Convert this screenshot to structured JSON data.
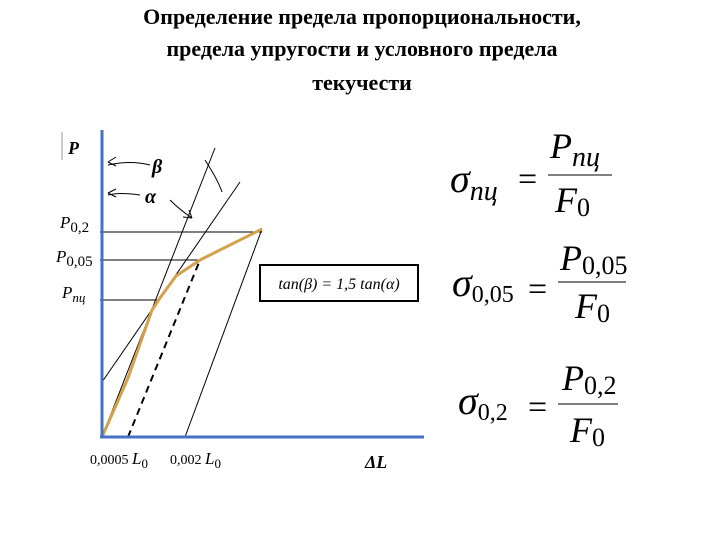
{
  "title": [
    "Определение предела пропорциональности,",
    "предела упругости и условного предела",
    "текучести"
  ],
  "axis": {
    "y": "P",
    "x": "ΔL"
  },
  "angles": [
    "β",
    "α"
  ],
  "y_labels": [
    {
      "base": "P",
      "sub": "0,2"
    },
    {
      "base": "P",
      "sub": "0,05"
    },
    {
      "base": "P",
      "sub": "пц"
    }
  ],
  "x_labels": [
    {
      "value": "0,0005",
      "base": "L",
      "sub": "0"
    },
    {
      "value": "0,002",
      "base": "L",
      "sub": "0"
    }
  ],
  "relation": "tan(β) = 1,5 tan(α)",
  "formulas": [
    {
      "sigma": "σ",
      "sub": "пц",
      "eq": "=",
      "num": {
        "base": "P",
        "sub": "пц"
      },
      "den": {
        "base": "F",
        "sub": "0"
      }
    },
    {
      "sigma": "σ",
      "sub": "0,05",
      "eq": "=",
      "num": {
        "base": "P",
        "sub": "0,05"
      },
      "den": {
        "base": "F",
        "sub": "0"
      }
    },
    {
      "sigma": "σ",
      "sub": "0,2",
      "eq": "=",
      "num": {
        "base": "P",
        "sub": "0,2"
      },
      "den": {
        "base": "F",
        "sub": "0"
      }
    }
  ]
}
